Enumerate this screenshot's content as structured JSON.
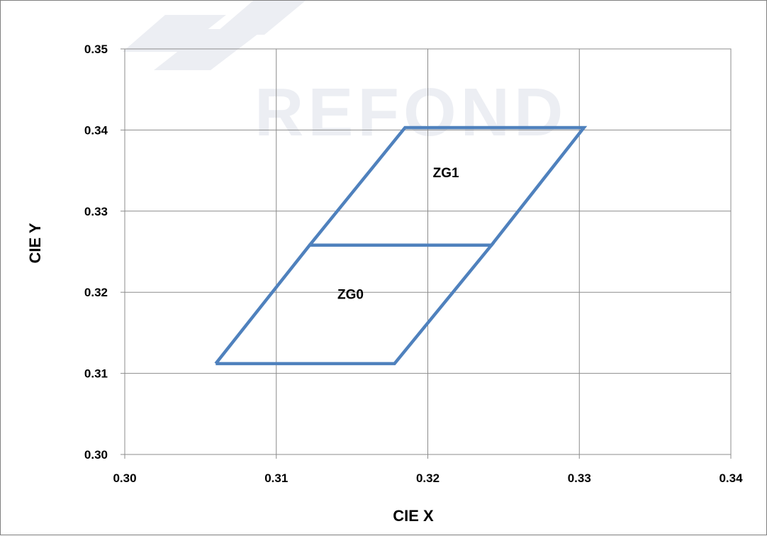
{
  "chart_data": {
    "type": "line",
    "title": "",
    "xlabel": "CIE  X",
    "ylabel": "CIE  Y",
    "xlim": [
      0.3,
      0.34
    ],
    "ylim": [
      0.3,
      0.35
    ],
    "x_ticks": [
      "0.30",
      "0.31",
      "0.32",
      "0.33",
      "0.34"
    ],
    "y_ticks": [
      "0.30",
      "0.31",
      "0.32",
      "0.33",
      "0.34",
      "0.35"
    ],
    "grid": true,
    "legend": "none",
    "series_color": "#4f81bd",
    "regions": [
      {
        "name": "ZG0",
        "polygon": [
          [
            0.306,
            0.3112
          ],
          [
            0.3178,
            0.3112
          ],
          [
            0.3242,
            0.3258
          ],
          [
            0.3122,
            0.3258
          ],
          [
            0.306,
            0.3112
          ]
        ],
        "label_at": [
          0.3149,
          0.3198
        ]
      },
      {
        "name": "ZG1",
        "polygon": [
          [
            0.3122,
            0.3258
          ],
          [
            0.3242,
            0.3258
          ],
          [
            0.3303,
            0.3403
          ],
          [
            0.3185,
            0.3403
          ],
          [
            0.3122,
            0.3258
          ]
        ],
        "label_at": [
          0.3212,
          0.3348
        ]
      }
    ]
  },
  "watermark": {
    "text": "REFOND"
  }
}
